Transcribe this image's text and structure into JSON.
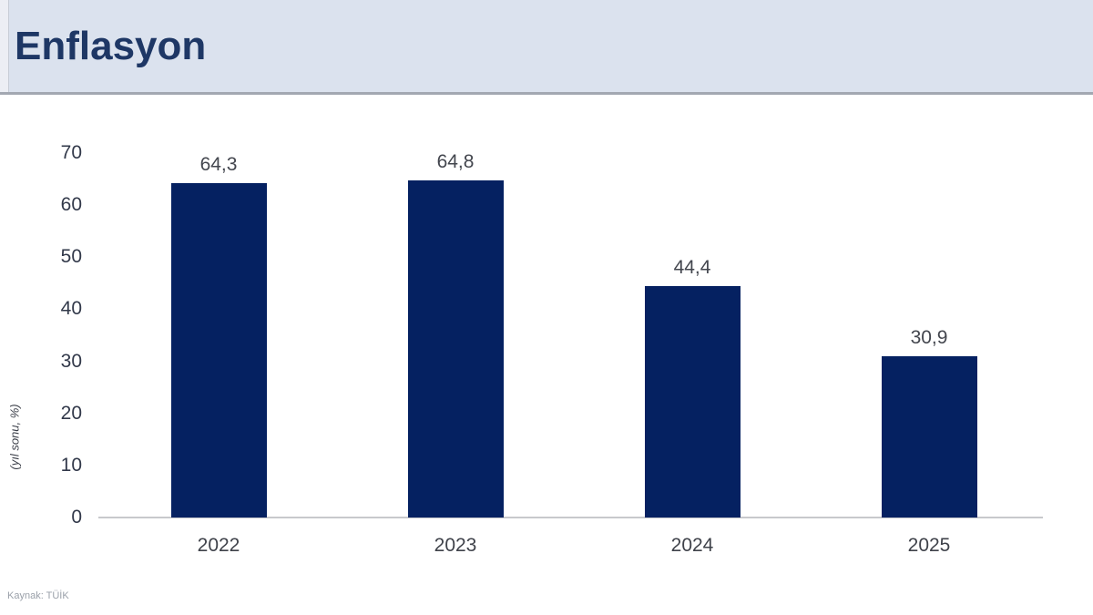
{
  "header": {
    "title": "Enflasyon"
  },
  "chart_data": {
    "type": "bar",
    "title": "Enflasyon",
    "categories": [
      "2022",
      "2023",
      "2024",
      "2025"
    ],
    "values": [
      64.3,
      64.8,
      44.4,
      30.9
    ],
    "value_labels": [
      "64,3",
      "64,8",
      "44,4",
      "30,9"
    ],
    "xlabel": "",
    "ylabel": "(yıl sonu, %)",
    "ylim": [
      0,
      70
    ],
    "yticks": [
      0,
      10,
      20,
      30,
      40,
      50,
      60,
      70
    ],
    "grid": false,
    "legend": "none",
    "bar_color": "#052161"
  },
  "footer": {
    "source": "Kaynak: TÜİK"
  },
  "colors": {
    "header_bg": "#dbe2ee",
    "header_border": "#a3a8b2",
    "title_text": "#1e3765",
    "bar": "#052161",
    "axis_line": "#c8c9cc",
    "tick_text": "#32394a",
    "value_text": "#43464e",
    "source_text": "#9aa0a9"
  }
}
